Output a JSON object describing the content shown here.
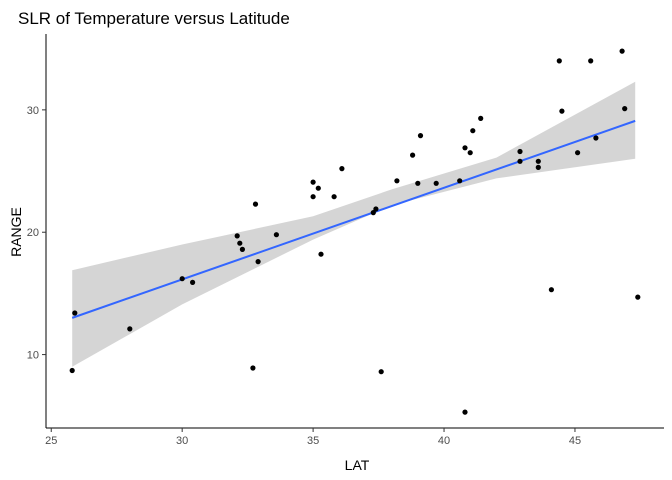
{
  "chart_data": {
    "type": "scatter",
    "title": "SLR of Temperature versus Latitude",
    "xlabel": "LAT",
    "ylabel": "RANGE",
    "xlim": [
      24.8,
      48.4
    ],
    "ylim": [
      4.0,
      36.2
    ],
    "xticks": [
      25,
      30,
      35,
      40,
      45
    ],
    "yticks": [
      10,
      20,
      30
    ],
    "grid": false,
    "legend": "none",
    "points": [
      {
        "x": 25.8,
        "y": 8.7
      },
      {
        "x": 25.9,
        "y": 13.4
      },
      {
        "x": 28.0,
        "y": 12.1
      },
      {
        "x": 30.0,
        "y": 16.2
      },
      {
        "x": 30.4,
        "y": 15.9
      },
      {
        "x": 32.1,
        "y": 19.7
      },
      {
        "x": 32.2,
        "y": 19.1
      },
      {
        "x": 32.3,
        "y": 18.6
      },
      {
        "x": 32.7,
        "y": 8.9
      },
      {
        "x": 32.8,
        "y": 22.3
      },
      {
        "x": 32.9,
        "y": 17.6
      },
      {
        "x": 33.6,
        "y": 19.8
      },
      {
        "x": 35.0,
        "y": 24.1
      },
      {
        "x": 35.0,
        "y": 22.9
      },
      {
        "x": 35.2,
        "y": 23.6
      },
      {
        "x": 35.3,
        "y": 18.2
      },
      {
        "x": 35.8,
        "y": 22.9
      },
      {
        "x": 36.1,
        "y": 25.2
      },
      {
        "x": 37.3,
        "y": 21.6
      },
      {
        "x": 37.4,
        "y": 21.9
      },
      {
        "x": 37.6,
        "y": 8.6
      },
      {
        "x": 38.2,
        "y": 24.2
      },
      {
        "x": 38.8,
        "y": 26.3
      },
      {
        "x": 39.0,
        "y": 24.0
      },
      {
        "x": 39.1,
        "y": 27.9
      },
      {
        "x": 39.7,
        "y": 24.0
      },
      {
        "x": 40.6,
        "y": 24.2
      },
      {
        "x": 40.8,
        "y": 26.9
      },
      {
        "x": 40.8,
        "y": 5.3
      },
      {
        "x": 41.0,
        "y": 26.5
      },
      {
        "x": 41.1,
        "y": 28.3
      },
      {
        "x": 41.4,
        "y": 29.3
      },
      {
        "x": 42.9,
        "y": 26.6
      },
      {
        "x": 42.9,
        "y": 25.8
      },
      {
        "x": 43.6,
        "y": 25.8
      },
      {
        "x": 43.6,
        "y": 25.3
      },
      {
        "x": 44.1,
        "y": 15.3
      },
      {
        "x": 44.4,
        "y": 34.0
      },
      {
        "x": 44.5,
        "y": 29.9
      },
      {
        "x": 45.1,
        "y": 26.5
      },
      {
        "x": 45.6,
        "y": 34.0
      },
      {
        "x": 45.8,
        "y": 27.7
      },
      {
        "x": 46.8,
        "y": 34.8
      },
      {
        "x": 46.9,
        "y": 30.1
      },
      {
        "x": 47.4,
        "y": 14.7
      }
    ],
    "fit_line": {
      "x": [
        25.8,
        47.3
      ],
      "y": [
        13.0,
        29.1
      ],
      "color": "#3366FF"
    },
    "confidence_band": {
      "x": [
        25.8,
        30.0,
        35.0,
        38.0,
        42.0,
        47.3
      ],
      "lower": [
        9.0,
        14.1,
        19.4,
        22.2,
        24.4,
        26.0
      ],
      "upper": [
        16.9,
        19.0,
        21.3,
        23.5,
        26.1,
        32.3
      ],
      "color": "#d3d3d3"
    },
    "point_color": "#000000"
  }
}
